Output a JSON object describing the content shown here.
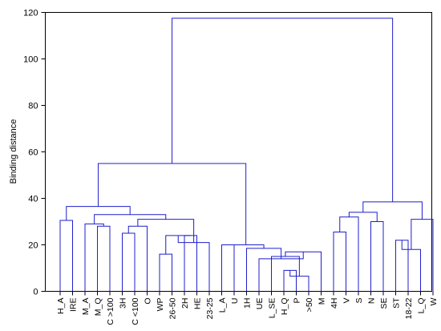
{
  "chart_data": {
    "type": "dendrogram",
    "title": "",
    "xlabel": "",
    "ylabel": "Binding distance",
    "ylim": [
      0,
      120
    ],
    "yticks": [
      0,
      20,
      40,
      60,
      80,
      100,
      120
    ],
    "grid": false,
    "legend": "none",
    "line_color": "#1f1fcc",
    "leaves": [
      "H_A",
      "IRE",
      "M_A",
      "M_Q",
      "C >100",
      "3H",
      "C <100",
      "O",
      "WP",
      "26-50",
      "2H",
      "HE",
      "23-25",
      "L_A",
      "U",
      "1H",
      "UE",
      "L_SE",
      "H_Q",
      "P",
      ">50",
      "M",
      "4H",
      "V",
      "S",
      "N",
      "SE",
      "ST",
      "18-22",
      "L_Q",
      "W"
    ],
    "merges": [
      {
        "left": "H_A",
        "right": "IRE",
        "height": 30.5,
        "node": 1
      },
      {
        "left": "C >100",
        "right": "M_Q",
        "height": 28,
        "node": 2
      },
      {
        "left": "M_A",
        "right": 2,
        "height": 29,
        "node": 3
      },
      {
        "left": "3H",
        "right": "C <100",
        "height": 25,
        "node": 4
      },
      {
        "left": 4,
        "right": "O",
        "height": 28,
        "node": 5
      },
      {
        "left": "WP",
        "right": "26-50",
        "height": 16,
        "node": 6
      },
      {
        "left": "2H",
        "right": "HE",
        "height": 24,
        "node": 7
      },
      {
        "left": 6,
        "right": 7,
        "height": 24,
        "node": 8
      },
      {
        "left": 8,
        "right": "23-25",
        "height": 21,
        "node": 9
      },
      {
        "left": 5,
        "right": 9,
        "height": 31,
        "node": 10
      },
      {
        "left": 3,
        "right": 10,
        "height": 33,
        "node": 11
      },
      {
        "left": 1,
        "right": 11,
        "height": 36.5,
        "node": 12
      },
      {
        "left": "L_A",
        "right": "U",
        "height": 20,
        "node": 13
      },
      {
        "left": "H_Q",
        "right": "P",
        "height": 9,
        "node": 14
      },
      {
        "left": 14,
        "right": ">50",
        "height": 6.5,
        "node": 15
      },
      {
        "left": "L_SE",
        "right": 15,
        "height": 15,
        "node": 16
      },
      {
        "left": 16,
        "right": "M",
        "height": 17,
        "node": 17
      },
      {
        "left": "UE",
        "right": 17,
        "height": 14,
        "node": 18
      },
      {
        "left": "1H",
        "right": 18,
        "height": 18.5,
        "node": 19
      },
      {
        "left": 13,
        "right": 19,
        "height": 20,
        "node": 20
      },
      {
        "left": 12,
        "right": 20,
        "height": 55,
        "node": 21
      },
      {
        "left": "4H",
        "right": "V",
        "height": 25.5,
        "node": 22
      },
      {
        "left": 22,
        "right": "S",
        "height": 32,
        "node": 23
      },
      {
        "left": "N",
        "right": "SE",
        "height": 30,
        "node": 24
      },
      {
        "left": 23,
        "right": 24,
        "height": 34,
        "node": 25
      },
      {
        "left": "ST",
        "right": "18-22",
        "height": 22,
        "node": 26
      },
      {
        "left": 26,
        "right": "L_Q",
        "height": 18,
        "node": 27
      },
      {
        "left": 27,
        "right": "W",
        "height": 31,
        "node": 28
      },
      {
        "left": 25,
        "right": 28,
        "height": 38.5,
        "node": 29
      },
      {
        "left": 21,
        "right": 29,
        "height": 117.5,
        "node": 30
      }
    ]
  }
}
